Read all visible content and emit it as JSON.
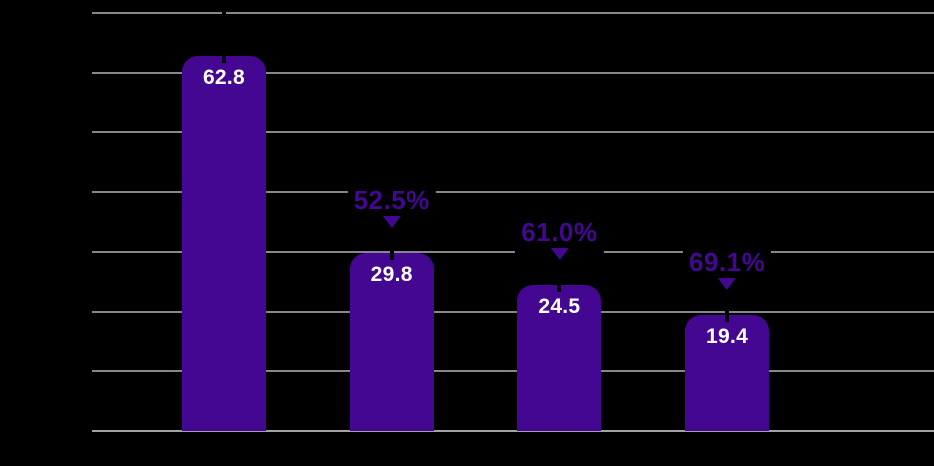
{
  "chart_data": {
    "type": "bar",
    "title": "",
    "values": [
      62.8,
      29.8,
      24.5,
      19.4
    ],
    "bar_labels": [
      "62.8",
      "29.8",
      "24.5",
      "19.4"
    ],
    "annotations": [
      {
        "bar_index": 1,
        "text": "52.5%",
        "marker": "triangle-down"
      },
      {
        "bar_index": 2,
        "text": "61.0%",
        "marker": "triangle-down"
      },
      {
        "bar_index": 3,
        "text": "69.1%",
        "marker": "triangle-down"
      }
    ],
    "ylim": [
      0,
      70
    ],
    "gridlines": {
      "count": 8,
      "interval": 10,
      "orientation": "horizontal",
      "visible": true
    },
    "legend": "none",
    "axis_tick_labels_visible": false,
    "bar_label_position": "inside-top",
    "annotation_meaning": "percent decline versus first bar"
  },
  "colors": {
    "background": "#000000",
    "bar_fill": "#430792",
    "annotation": "#430792",
    "bar_label_text": "#ffffff",
    "gridline": "#86868c",
    "axis_line": "#a2a2a8",
    "connector": "#000000"
  }
}
